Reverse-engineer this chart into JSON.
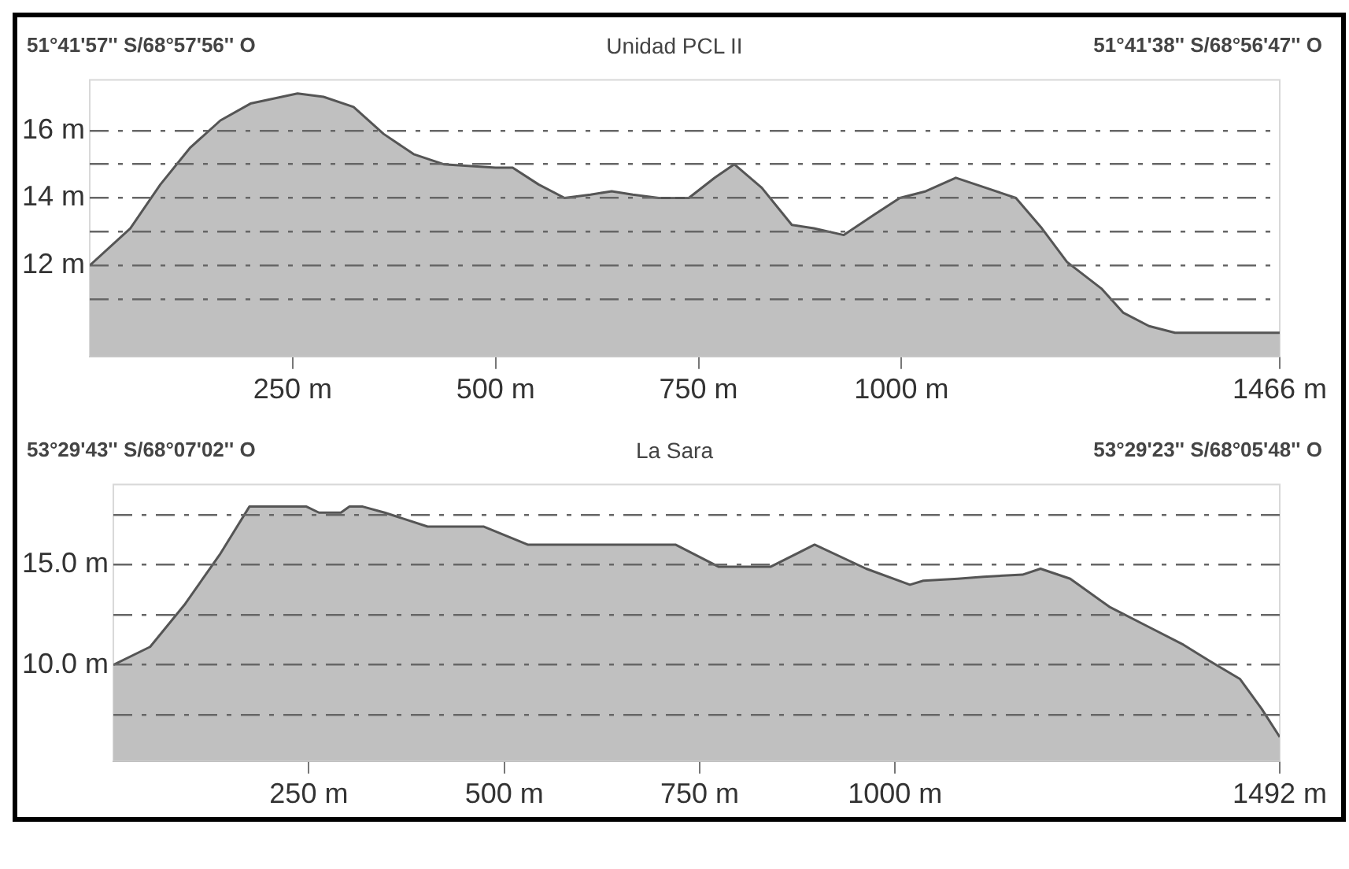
{
  "chart_data": [
    {
      "type": "area",
      "title": "Unidad PCL II",
      "annotations": [
        "51°41'57'' S/68°57'56'' O",
        "51°41'38'' S/68°56'47'' O"
      ],
      "x": [
        0,
        50,
        87,
        124,
        161,
        198,
        256,
        288,
        325,
        362,
        399,
        436,
        500,
        521,
        553,
        585,
        617,
        643,
        669,
        701,
        738,
        770,
        794,
        828,
        865,
        892,
        929,
        966,
        998,
        1030,
        1067,
        1104,
        1141,
        1173,
        1204,
        1247,
        1273,
        1305,
        1337,
        1466
      ],
      "series": [
        {
          "color": "#c0c0c0",
          "values": [
            12.0,
            13.1,
            14.4,
            15.5,
            16.3,
            16.8,
            17.1,
            17.0,
            16.7,
            15.9,
            15.3,
            15.0,
            14.9,
            14.9,
            14.4,
            14.0,
            14.1,
            14.2,
            14.1,
            14.0,
            14.0,
            14.6,
            15.0,
            14.3,
            13.2,
            13.1,
            12.9,
            13.5,
            14.0,
            14.2,
            14.6,
            14.3,
            14.0,
            13.1,
            12.1,
            11.3,
            10.6,
            10.2,
            10.0,
            10.0
          ]
        }
      ],
      "xlim": [
        0,
        1466
      ],
      "xticks": [
        {
          "value": 250,
          "label": "250 m"
        },
        {
          "value": 500,
          "label": "500 m"
        },
        {
          "value": 750,
          "label": "750 m"
        },
        {
          "value": 1000,
          "label": "1000 m"
        },
        {
          "value": 1466,
          "label": "1466 m"
        }
      ],
      "ylim": [
        9.3,
        17.5
      ],
      "yticks": [
        {
          "value": 11,
          "label": null
        },
        {
          "value": 12,
          "label": "12 m"
        },
        {
          "value": 13,
          "label": null
        },
        {
          "value": 14,
          "label": "14 m"
        },
        {
          "value": 15,
          "label": null
        },
        {
          "value": 16,
          "label": "16 m"
        }
      ],
      "grid": "y",
      "line_style": "dashed"
    },
    {
      "type": "area",
      "title": "La Sara",
      "annotations": [
        "53°29'43'' S/68°07'02'' O",
        "53°29'23'' S/68°05'48'' O"
      ],
      "x": [
        0,
        47,
        91,
        136,
        174,
        247,
        263,
        291,
        302,
        319,
        347,
        402,
        474,
        530,
        719,
        774,
        841,
        897,
        963,
        1019,
        1036,
        1080,
        1113,
        1163,
        1186,
        1224,
        1274,
        1324,
        1369,
        1402,
        1441,
        1469,
        1492
      ],
      "series": [
        {
          "color": "#c0c0c0",
          "values": [
            10.0,
            10.9,
            13.0,
            15.5,
            17.9,
            17.9,
            17.6,
            17.6,
            17.9,
            17.9,
            17.6,
            16.9,
            16.9,
            16.0,
            16.0,
            14.9,
            14.9,
            16.0,
            14.8,
            14.0,
            14.2,
            14.3,
            14.4,
            14.5,
            14.8,
            14.3,
            12.9,
            11.9,
            11.0,
            10.2,
            9.3,
            7.8,
            6.4
          ]
        }
      ],
      "xlim": [
        0,
        1492
      ],
      "xticks": [
        {
          "value": 250,
          "label": "250 m"
        },
        {
          "value": 500,
          "label": "500 m"
        },
        {
          "value": 750,
          "label": "750 m"
        },
        {
          "value": 1000,
          "label": "1000 m"
        },
        {
          "value": 1492,
          "label": "1492 m"
        }
      ],
      "ylim": [
        5.2,
        19
      ],
      "yticks": [
        {
          "value": 7.5,
          "label": null
        },
        {
          "value": 10,
          "label": "10.0 m"
        },
        {
          "value": 12.5,
          "label": null
        },
        {
          "value": 15,
          "label": "15.0 m"
        },
        {
          "value": 17.5,
          "label": null
        }
      ],
      "grid": "y",
      "line_style": "dashed"
    }
  ]
}
